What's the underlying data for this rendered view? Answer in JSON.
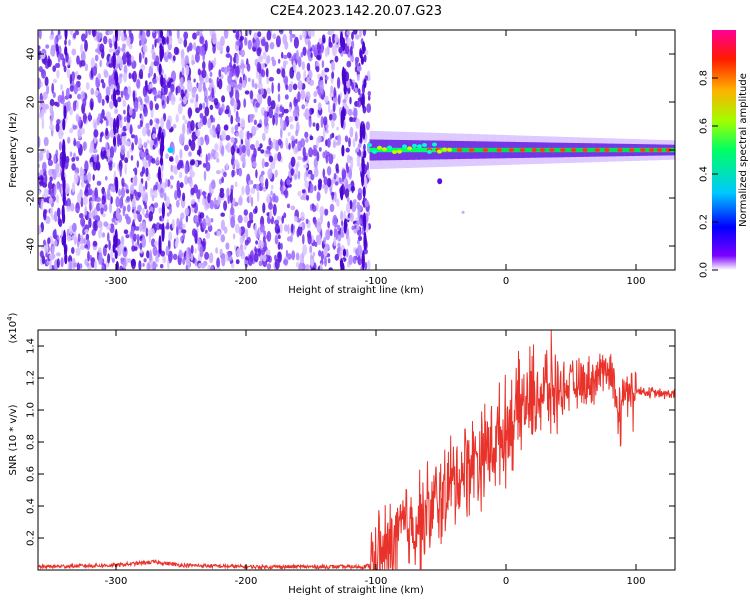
{
  "figure": {
    "title": "C2E4.2023.142.20.07.G23"
  },
  "colors": {
    "snr_line": "#e8322a",
    "spec_core": "#e8322a",
    "spec_low": "#7a2be8"
  },
  "chart_data": [
    {
      "type": "heatmap",
      "xlabel": "Height of straight line (km)",
      "ylabel": "Frequency (Hz)",
      "xlim": [
        -360,
        130
      ],
      "ylim": [
        -50,
        50
      ],
      "xticks": [
        -300,
        -200,
        -100,
        0,
        100
      ],
      "yticks": [
        40,
        20,
        0,
        -20,
        -40
      ],
      "description_series": [
        {
          "name": "noise region",
          "x_range": [
            -360,
            -105
          ],
          "freq_range": [
            -50,
            50
          ],
          "amplitude_range": [
            0.0,
            0.3
          ]
        },
        {
          "name": "signal trace",
          "x_range": [
            -105,
            130
          ],
          "freq_center": 0,
          "freq_halfwidth_start": 8,
          "freq_halfwidth_end": 4,
          "amplitude_range": [
            0.5,
            1.0
          ]
        }
      ],
      "colorbar": {
        "label": "Normalized spectral amplitude",
        "ticks": [
          "0.0",
          "0.2",
          "0.4",
          "0.6",
          "0.8"
        ],
        "range": [
          0,
          1
        ],
        "stops": [
          "#ffffff",
          "#6a00ff",
          "#0000ff",
          "#00c8ff",
          "#00ff64",
          "#c8ff00",
          "#ffa000",
          "#ff0000",
          "#ff0096"
        ]
      }
    },
    {
      "type": "line",
      "xlabel": "Height of straight line (km)",
      "ylabel": "SNR (10 * v/v)",
      "scale_note": "(x10",
      "scale_exp": "4",
      "scale_close": ")",
      "xlim": [
        -360,
        130
      ],
      "ylim": [
        0,
        1.5
      ],
      "xticks": [
        -300,
        -200,
        -100,
        0,
        100
      ],
      "yticks": [
        "0.2",
        "0.4",
        "0.6",
        "0.8",
        "1.0",
        "1.2",
        "1.4"
      ],
      "series": [
        {
          "x": [
            -360,
            -300,
            -270,
            -250,
            -200,
            -150,
            -110,
            -100,
            -90,
            -80,
            -70,
            -60,
            -50,
            -40,
            -30,
            -20,
            -10,
            0,
            10,
            20,
            30,
            40,
            50,
            60,
            70,
            75,
            80,
            85,
            90,
            95,
            100,
            110,
            120,
            130
          ],
          "y": [
            0.02,
            0.03,
            0.05,
            0.03,
            0.02,
            0.02,
            0.02,
            0.04,
            0.12,
            0.25,
            0.3,
            0.35,
            0.45,
            0.55,
            0.65,
            0.72,
            0.78,
            0.88,
            1.0,
            1.08,
            1.12,
            1.13,
            1.15,
            1.17,
            1.2,
            1.25,
            1.3,
            1.0,
            1.1,
            1.15,
            1.12,
            1.11,
            1.1,
            1.1
          ]
        }
      ]
    }
  ]
}
